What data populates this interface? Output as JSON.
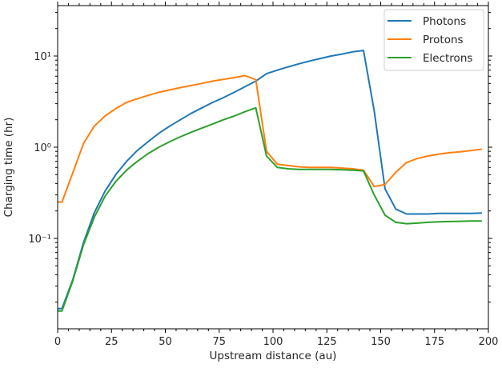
{
  "chart_data": {
    "type": "line",
    "title": "",
    "xlabel": "Upstream distance (au)",
    "ylabel": "Charging time (hr)",
    "xlim": [
      0,
      200
    ],
    "ylim": [
      0.012,
      35
    ],
    "yscale": "log",
    "grid": false,
    "legend_position": "upper right",
    "x_ticks": [
      0,
      25,
      50,
      75,
      100,
      125,
      150,
      175,
      200
    ],
    "x_tick_labels": [
      "0",
      "25",
      "50",
      "75",
      "100",
      "125",
      "150",
      "175",
      "200"
    ],
    "y_ticks": [
      0.1,
      1,
      10
    ],
    "y_tick_labels": [
      "10⁻¹",
      "10⁰",
      "10¹"
    ],
    "series": [
      {
        "name": "Photons",
        "color": "#1f77b4",
        "x": [
          0,
          2,
          7,
          12,
          17,
          22,
          27,
          32,
          37,
          42,
          47,
          52,
          57,
          62,
          67,
          72,
          77,
          82,
          87,
          92,
          97,
          102,
          107,
          112,
          117,
          122,
          127,
          132,
          137,
          142,
          147,
          152,
          157,
          162,
          167,
          172,
          177,
          182,
          187,
          192,
          197
        ],
        "values": [
          0.017,
          0.017,
          0.035,
          0.09,
          0.19,
          0.33,
          0.5,
          0.7,
          0.92,
          1.15,
          1.42,
          1.7,
          2.0,
          2.35,
          2.7,
          3.1,
          3.5,
          4.0,
          4.6,
          5.3,
          6.4,
          7.0,
          7.6,
          8.2,
          8.8,
          9.4,
          10.0,
          10.5,
          11.1,
          11.5,
          2.5,
          0.35,
          0.21,
          0.185,
          0.185,
          0.185,
          0.188,
          0.188,
          0.188,
          0.188,
          0.19
        ]
      },
      {
        "name": "Protons",
        "color": "#ff7f0e",
        "x": [
          0,
          2,
          7,
          12,
          17,
          22,
          27,
          32,
          37,
          42,
          47,
          52,
          57,
          62,
          67,
          72,
          77,
          82,
          87,
          92,
          97,
          102,
          107,
          112,
          117,
          122,
          127,
          132,
          137,
          142,
          147,
          152,
          157,
          162,
          167,
          172,
          177,
          182,
          187,
          192,
          197
        ],
        "values": [
          0.25,
          0.25,
          0.52,
          1.1,
          1.7,
          2.2,
          2.65,
          3.1,
          3.4,
          3.7,
          4.0,
          4.25,
          4.5,
          4.75,
          5.0,
          5.3,
          5.55,
          5.8,
          6.1,
          5.5,
          0.9,
          0.65,
          0.63,
          0.61,
          0.6,
          0.6,
          0.6,
          0.59,
          0.58,
          0.56,
          0.37,
          0.39,
          0.53,
          0.68,
          0.75,
          0.8,
          0.84,
          0.87,
          0.89,
          0.92,
          0.95
        ]
      },
      {
        "name": "Electrons",
        "color": "#2ca02c",
        "x": [
          0,
          2,
          7,
          12,
          17,
          22,
          27,
          32,
          37,
          42,
          47,
          52,
          57,
          62,
          67,
          72,
          77,
          82,
          87,
          92,
          97,
          102,
          107,
          112,
          117,
          122,
          127,
          132,
          137,
          142,
          147,
          152,
          157,
          162,
          167,
          172,
          177,
          182,
          187,
          192,
          197
        ],
        "values": [
          0.016,
          0.016,
          0.034,
          0.085,
          0.17,
          0.29,
          0.42,
          0.56,
          0.7,
          0.85,
          1.0,
          1.15,
          1.3,
          1.46,
          1.62,
          1.8,
          2.0,
          2.2,
          2.45,
          2.7,
          0.8,
          0.6,
          0.58,
          0.57,
          0.57,
          0.57,
          0.57,
          0.565,
          0.56,
          0.55,
          0.3,
          0.18,
          0.15,
          0.145,
          0.147,
          0.15,
          0.152,
          0.153,
          0.154,
          0.155,
          0.155
        ]
      }
    ]
  },
  "legend": {
    "items": [
      {
        "label": "Photons",
        "color": "#1f77b4"
      },
      {
        "label": "Protons",
        "color": "#ff7f0e"
      },
      {
        "label": "Electrons",
        "color": "#2ca02c"
      }
    ]
  }
}
